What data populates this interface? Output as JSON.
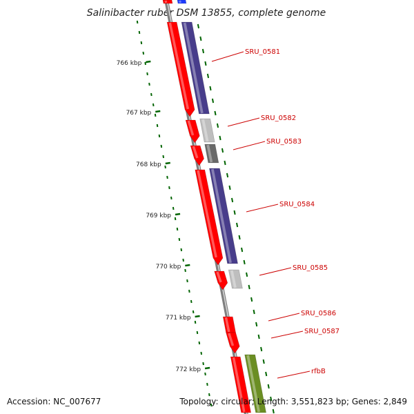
{
  "title": "Salinibacter ruber DSM 13855, complete genome",
  "footer": {
    "accession": "Accession: NC_007677",
    "summary": "Topology: circular; Length: 3,551,823 bp; Genes: 2,849"
  },
  "colors": {
    "backbone": "#808080",
    "cds": "#ff0000",
    "gene_blue": "#483d8b",
    "gene_gray": "#bebebe",
    "gene_dark": "#696969",
    "gene_green": "#6b8e23",
    "tick": "#006400",
    "label": "#cc0000"
  },
  "scale_ticks": [
    "766 kbp",
    "767 kbp",
    "768 kbp",
    "769 kbp",
    "770 kbp",
    "771 kbp",
    "772 kbp"
  ],
  "genes": [
    {
      "name": "SRU_0581",
      "color": "#483d8b"
    },
    {
      "name": "SRU_0582",
      "color": "#bebebe"
    },
    {
      "name": "SRU_0583",
      "color": "#696969"
    },
    {
      "name": "SRU_0584",
      "color": "#483d8b"
    },
    {
      "name": "SRU_0585",
      "color": "#bebebe"
    },
    {
      "name": "SRU_0586",
      "color": null
    },
    {
      "name": "SRU_0587",
      "color": null
    },
    {
      "name": "rfbB",
      "color": "#6b8e23"
    }
  ]
}
